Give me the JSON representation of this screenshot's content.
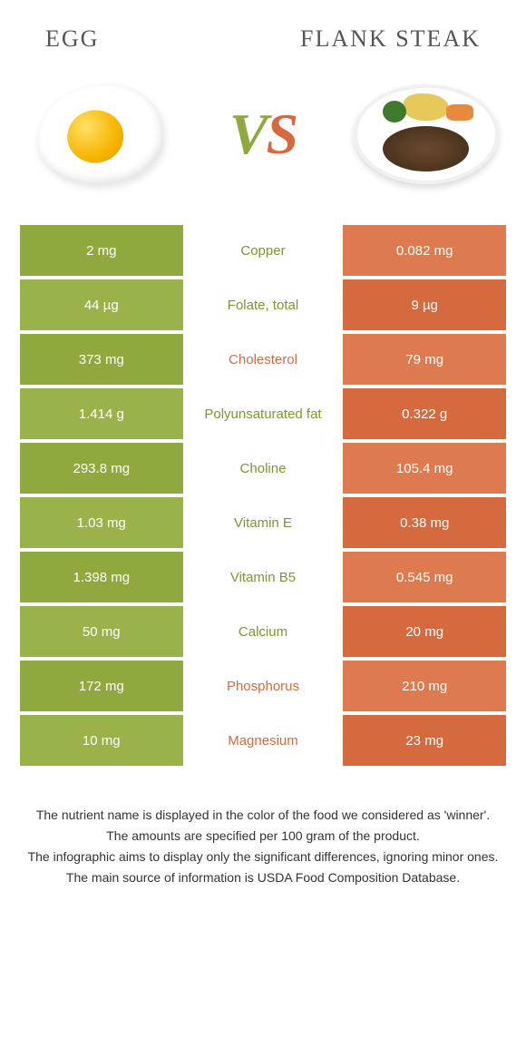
{
  "colors": {
    "green_a": "#8fa93f",
    "green_b": "#99b34a",
    "orange_a": "#dd7a4f",
    "orange_b": "#d46a3e",
    "text_green": "#7a9830",
    "text_orange": "#d46a3e",
    "title_grey": "#555555"
  },
  "header": {
    "left": "Egg",
    "right": "Flank Steak"
  },
  "vs": {
    "v": "V",
    "s": "S"
  },
  "rows": [
    {
      "left": "2 mg",
      "label": "Copper",
      "right": "0.082 mg",
      "winner": "left"
    },
    {
      "left": "44 µg",
      "label": "Folate, total",
      "right": "9 µg",
      "winner": "left"
    },
    {
      "left": "373 mg",
      "label": "Cholesterol",
      "right": "79 mg",
      "winner": "right"
    },
    {
      "left": "1.414 g",
      "label": "Polyunsaturated fat",
      "right": "0.322 g",
      "winner": "left"
    },
    {
      "left": "293.8 mg",
      "label": "Choline",
      "right": "105.4 mg",
      "winner": "left"
    },
    {
      "left": "1.03 mg",
      "label": "Vitamin E",
      "right": "0.38 mg",
      "winner": "left"
    },
    {
      "left": "1.398 mg",
      "label": "Vitamin B5",
      "right": "0.545 mg",
      "winner": "left"
    },
    {
      "left": "50 mg",
      "label": "Calcium",
      "right": "20 mg",
      "winner": "left"
    },
    {
      "left": "172 mg",
      "label": "Phosphorus",
      "right": "210 mg",
      "winner": "right"
    },
    {
      "left": "10 mg",
      "label": "Magnesium",
      "right": "23 mg",
      "winner": "right"
    }
  ],
  "footer": {
    "l1": "The nutrient name is displayed in the color of the food we considered as 'winner'.",
    "l2": "The amounts are specified per 100 gram of the product.",
    "l3": "The infographic aims to display only the significant differences, ignoring minor ones.",
    "l4": "The main source of information is USDA Food Composition Database."
  }
}
